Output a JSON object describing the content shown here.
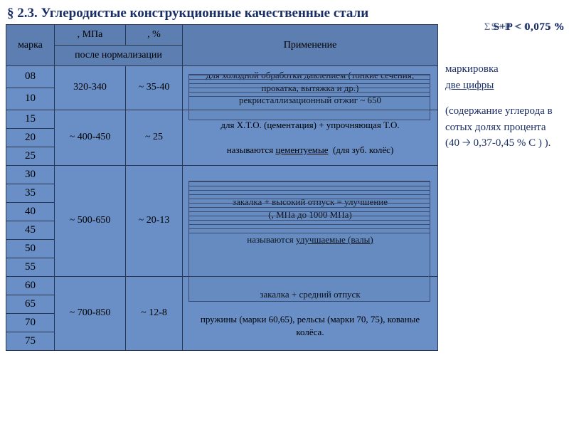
{
  "title": "§ 2.3. Углеродистые конструкционные  качественные стали",
  "sp_note_bold": "S+P < 0,075 %",
  "sp_note_ghost": "ΣS+P < 0,075 %",
  "headers": {
    "mark": "марка",
    "mpa_unit": ", МПа",
    "pct_unit": ", %",
    "sub": "после нормализации",
    "use": "Применение"
  },
  "sidebar": {
    "line1": "маркировка",
    "line2": "две цифры",
    "para": "(содержание углерода в сотых долях процента (40 🡢 0,37-0,45 % С ) )."
  },
  "groups": [
    {
      "marks": [
        "08",
        "10"
      ],
      "mpa": "320-340",
      "pct": "~ 35-40",
      "use_html": "для холодной обработки давлением (тонкие сечения; прокатка, вытяжка и др.)<br>рекристаллизационный отжиг ~ 650"
    },
    {
      "marks": [
        "15",
        "20",
        "25"
      ],
      "mpa": "~ 400-450",
      "pct": "~ 25",
      "use_html": "для Х.Т.О. (цементация) + упрочняющая Т.О.<br><br>называются <span class='underline'>цементуемые</span> &nbsp;(для зуб. колёс)"
    },
    {
      "marks": [
        "30",
        "35",
        "40",
        "45",
        "50",
        "55"
      ],
      "mpa": "~ 500-650",
      "pct": "~ 20-13",
      "use_html": "закалка + высокий отпуск = улучшение<br>(, МПа до 1000 МПа)<br><br>называются <span class='underline'>улучшаемые (валы)</span>"
    },
    {
      "marks": [
        "60",
        "65",
        "70",
        "75"
      ],
      "mpa": "~ 700-850",
      "pct": "~ 12-8",
      "use_html": "закалка + средний отпуск<br><br>пружины (марки 60,65), рельсы (марки 70, 75), кованые колёса."
    }
  ],
  "colors": {
    "cell_bg": "#698fc6",
    "hdr_bg": "#5d7eb0",
    "border": "#2a3550",
    "title_text": "#1a2e66"
  }
}
